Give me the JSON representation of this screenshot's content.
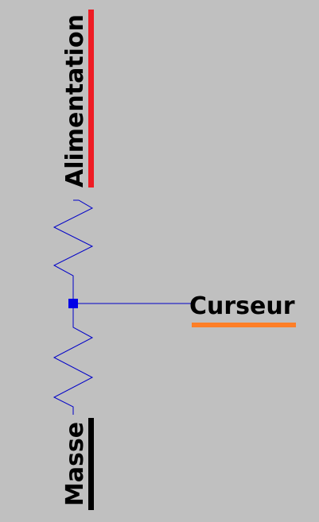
{
  "schematic": {
    "background": "#c0c0c0",
    "wire_color": "#0000c8",
    "labels": {
      "supply": "Alimentation",
      "wiper": "Curseur",
      "ground": "Masse"
    },
    "label_bar_colors": {
      "supply": "#ee1c24",
      "wiper": "#ff7f27",
      "ground": "#000000"
    },
    "components": {
      "upper_resistor": "resistor-zigzag",
      "lower_resistor": "resistor-zigzag",
      "junction": "junction-node"
    }
  }
}
